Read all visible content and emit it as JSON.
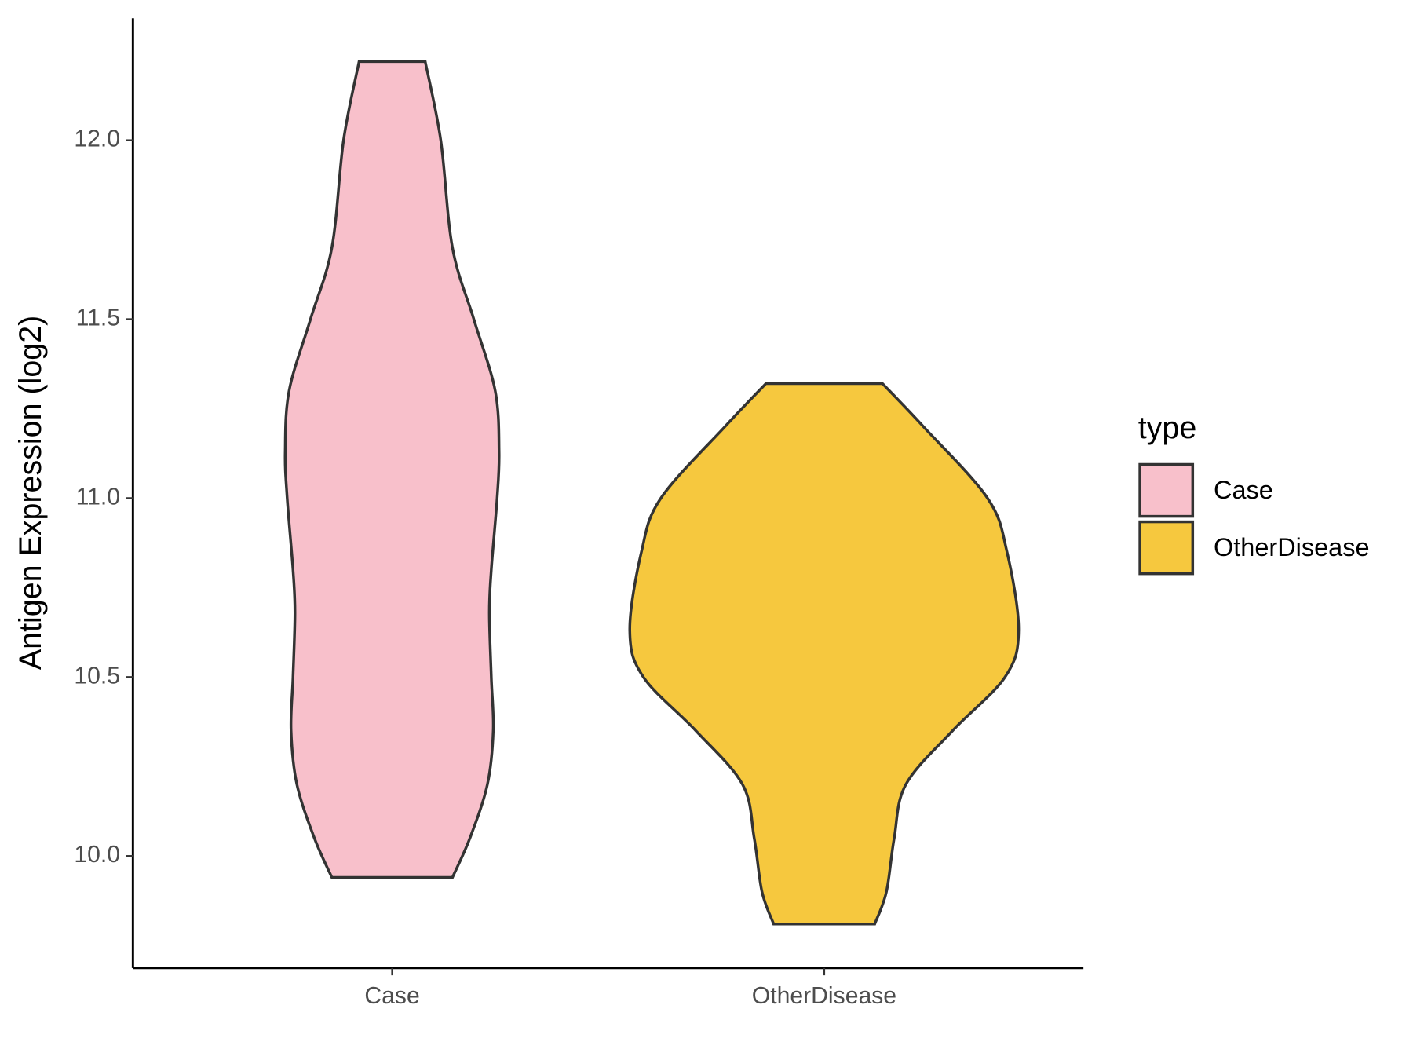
{
  "chart_data": {
    "type": "violin",
    "y_label": "Antigen Expression (log2)",
    "categories": [
      "Case",
      "OtherDisease"
    ],
    "ylim": [
      9.687,
      12.341
    ],
    "yticks": [
      {
        "value": 10,
        "label": "10.0"
      },
      {
        "value": 10.5,
        "label": "10.5"
      },
      {
        "value": 11,
        "label": "11.0"
      },
      {
        "value": 11.5,
        "label": "11.5"
      },
      {
        "value": 12,
        "label": "12.0"
      }
    ],
    "legend_title": "type",
    "legend": "right",
    "series": [
      {
        "name": "Case",
        "color": "#f8c0cb",
        "y": [
          12.22,
          12.0,
          11.7,
          11.5,
          11.3,
          11.13,
          11.0,
          10.8,
          10.68,
          10.5,
          10.35,
          10.2,
          10.05,
          9.94
        ],
        "density": [
          0.17,
          0.25,
          0.31,
          0.42,
          0.53,
          0.55,
          0.54,
          0.51,
          0.5,
          0.51,
          0.52,
          0.49,
          0.4,
          0.31
        ]
      },
      {
        "name": "OtherDisease",
        "color": "#f6c83e",
        "y": [
          11.32,
          11.2,
          11.0,
          10.85,
          10.63,
          10.5,
          10.35,
          10.2,
          10.05,
          9.9,
          9.81
        ],
        "density": [
          0.3,
          0.51,
          0.84,
          0.94,
          1.0,
          0.93,
          0.66,
          0.42,
          0.36,
          0.32,
          0.26
        ]
      }
    ]
  }
}
